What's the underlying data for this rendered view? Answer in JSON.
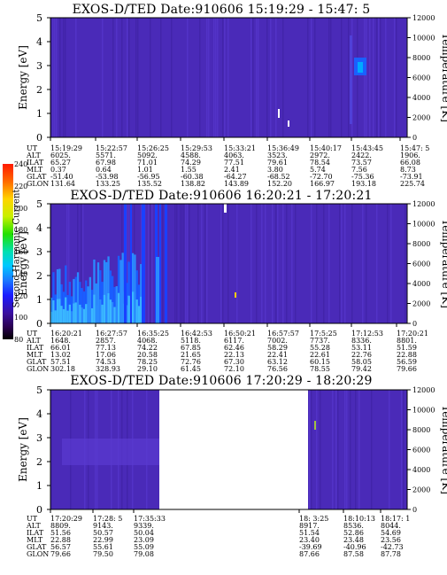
{
  "colorbar": {
    "title": "Second Harmonic Current",
    "ticks": [
      "240",
      "220",
      "200",
      "180",
      "160",
      "140",
      "120",
      "100",
      "80"
    ]
  },
  "row_labels": [
    "UT",
    "ALT",
    "ILAT",
    "MLT",
    "GLAT",
    "GLON"
  ],
  "chart_data": [
    {
      "type": "heatmap",
      "title": "EXOS-D/TED   Date:910606  15:19:29 - 15:47: 5",
      "ylabel": "Energy [eV]",
      "y2label": "Temperature [K]",
      "ylim": [
        0,
        5
      ],
      "y2lim": [
        0,
        12000
      ],
      "yticks": [
        "0",
        "1",
        "2",
        "3",
        "4",
        "5"
      ],
      "y2ticks": [
        "0",
        "2000",
        "4000",
        "6000",
        "8000",
        "10000",
        "12000"
      ],
      "columns": [
        {
          "UT": "15:19:29",
          "ALT": "6025.",
          "ILAT": "65.27",
          "MLT": "0.37",
          "GLAT": "-51.40",
          "GLON": "131.64"
        },
        {
          "UT": "15:22:57",
          "ALT": "5571.",
          "ILAT": "67.98",
          "MLT": "0.64",
          "GLAT": "-53.98",
          "GLON": "133.25"
        },
        {
          "UT": "15:26:25",
          "ALT": "5092.",
          "ILAT": "71.01",
          "MLT": "1.01",
          "GLAT": "-56.95",
          "GLON": "135.52"
        },
        {
          "UT": "15:29:53",
          "ALT": "4588.",
          "ILAT": "74.29",
          "MLT": "1.55",
          "GLAT": "-60.38",
          "GLON": "138.82"
        },
        {
          "UT": "15:33:21",
          "ALT": "4063.",
          "ILAT": "77.51",
          "MLT": "2.41",
          "GLAT": "-64.27",
          "GLON": "143.89"
        },
        {
          "UT": "15:36:49",
          "ALT": "3523.",
          "ILAT": "79.61",
          "MLT": "3.80",
          "GLAT": "-68.52",
          "GLON": "152.20"
        },
        {
          "UT": "15:40:17",
          "ALT": "2972.",
          "ILAT": "78.54",
          "MLT": "5.74",
          "GLAT": "-72.70",
          "GLON": "166.97"
        },
        {
          "UT": "15:43:45",
          "ALT": "2422.",
          "ILAT": "73.57",
          "MLT": "7.56",
          "GLAT": "-75.36",
          "GLON": "193.18"
        },
        {
          "UT": "15:47: 5",
          "ALT": "1906.",
          "ILAT": "66.08",
          "MLT": "8.73",
          "GLAT": "-73.91",
          "GLON": "225.74"
        }
      ]
    },
    {
      "type": "heatmap",
      "title": "EXOS-D/TED   Date:910606  16:20:21 - 17:20:21",
      "ylabel": "Energy [eV]",
      "y2label": "Temperature [K]",
      "ylim": [
        0,
        5
      ],
      "y2lim": [
        0,
        12000
      ],
      "yticks": [
        "0",
        "1",
        "2",
        "3",
        "4",
        "5"
      ],
      "y2ticks": [
        "0",
        "2000",
        "4000",
        "6000",
        "8000",
        "10000",
        "12000"
      ],
      "columns": [
        {
          "UT": "16:20:21",
          "ALT": "1648.",
          "ILAT": "66.01",
          "MLT": "13.02",
          "GLAT": "57.51",
          "GLON": "302.18"
        },
        {
          "UT": "16:27:57",
          "ALT": "2857.",
          "ILAT": "77.13",
          "MLT": "17.06",
          "GLAT": "74.53",
          "GLON": "328.93"
        },
        {
          "UT": "16:35:25",
          "ALT": "4068.",
          "ILAT": "74.22",
          "MLT": "20.58",
          "GLAT": "78.25",
          "GLON": "29.10"
        },
        {
          "UT": "16:42:53",
          "ALT": "5118.",
          "ILAT": "67.85",
          "MLT": "21.65",
          "GLAT": "72.76",
          "GLON": "61.45"
        },
        {
          "UT": "16:50:21",
          "ALT": "6117.",
          "ILAT": "62.46",
          "MLT": "22.13",
          "GLAT": "67.30",
          "GLON": "72.10"
        },
        {
          "UT": "16:57:57",
          "ALT": "7002.",
          "ILAT": "58.29",
          "MLT": "22.41",
          "GLAT": "63.12",
          "GLON": "76.56"
        },
        {
          "UT": "17:5:25",
          "ALT": "7737.",
          "ILAT": "55.28",
          "MLT": "22.61",
          "GLAT": "60.15",
          "GLON": "78.55"
        },
        {
          "UT": "17:12:53",
          "ALT": "8336.",
          "ILAT": "53.11",
          "MLT": "22.76",
          "GLAT": "58.05",
          "GLON": "79.42"
        },
        {
          "UT": "17:20:21",
          "ALT": "8801.",
          "ILAT": "51.59",
          "MLT": "22.88",
          "GLAT": "56.59",
          "GLON": "79.66"
        }
      ]
    },
    {
      "type": "heatmap",
      "title": "EXOS-D/TED   Date:910606  17:20:29 - 18:20:29",
      "ylabel": "Energy [eV]",
      "y2label": "Temperature [K]",
      "ylim": [
        0,
        5
      ],
      "y2lim": [
        0,
        12000
      ],
      "yticks": [
        "0",
        "1",
        "2",
        "3",
        "4",
        "5"
      ],
      "y2ticks": [
        "0",
        "2000",
        "4000",
        "6000",
        "8000",
        "10000",
        "12000"
      ],
      "columns": [
        {
          "UT": "17:20:29",
          "ALT": "8809.",
          "ILAT": "51.56",
          "MLT": "22.88",
          "GLAT": "56.57",
          "GLON": "79.66"
        },
        {
          "UT": "17:28: 5",
          "ALT": "9143.",
          "ILAT": "50.57",
          "MLT": "22.99",
          "GLAT": "55.61",
          "GLON": "79.50"
        },
        {
          "UT": "17:35:33",
          "ALT": "9339.",
          "ILAT": "50.04",
          "MLT": "23.09",
          "GLAT": "55.09",
          "GLON": "79.08"
        },
        {
          "UT": "",
          "ALT": "",
          "ILAT": "",
          "MLT": "",
          "GLAT": "",
          "GLON": ""
        },
        {
          "UT": "",
          "ALT": "",
          "ILAT": "",
          "MLT": "",
          "GLAT": "",
          "GLON": ""
        },
        {
          "UT": "18: 3:25",
          "ALT": "8917.",
          "ILAT": "51.54",
          "MLT": "23.40",
          "GLAT": "-39.69",
          "GLON": "87.66"
        },
        {
          "UT": "18:10:13",
          "ALT": "8536.",
          "ILAT": "52.86",
          "MLT": "23.48",
          "GLAT": "-40.96",
          "GLON": "87.58"
        },
        {
          "UT": "18:17: 1",
          "ALT": "8044.",
          "ILAT": "54.69",
          "MLT": "23.56",
          "GLAT": "-42.73",
          "GLON": "87.78"
        }
      ]
    }
  ]
}
